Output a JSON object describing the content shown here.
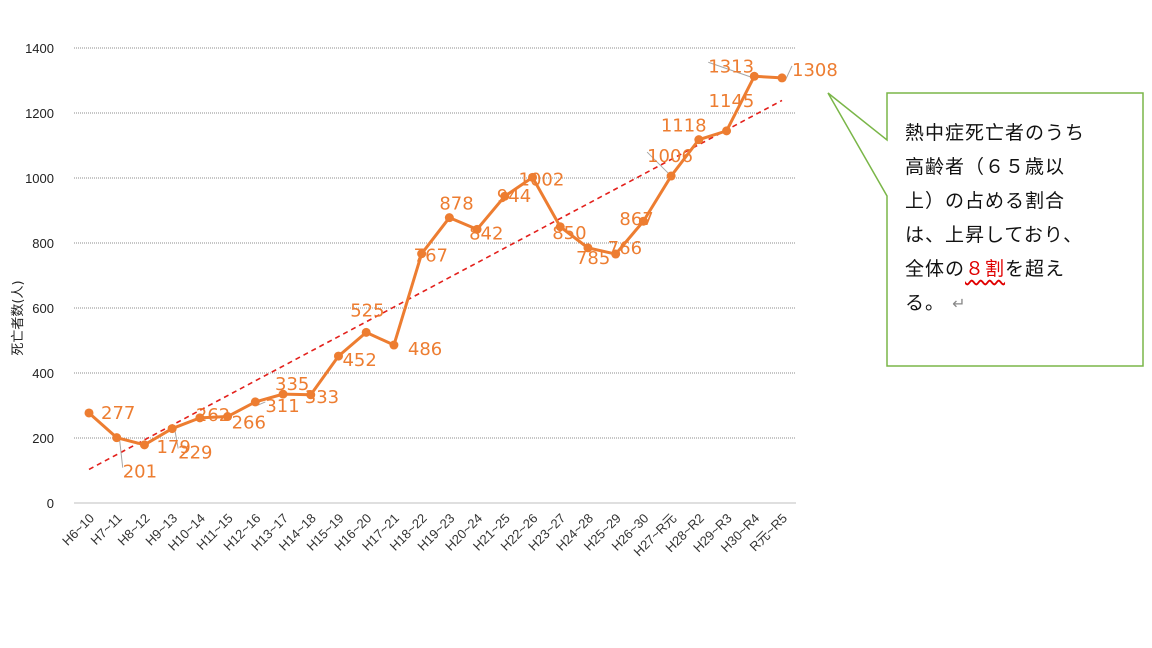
{
  "chart_data": {
    "type": "line",
    "categories": [
      "H6~10",
      "H7~11",
      "H8~12",
      "H9~13",
      "H10~14",
      "H11~15",
      "H12~16",
      "H13~17",
      "H14~18",
      "H15~19",
      "H16~20",
      "H17~21",
      "H18~22",
      "H19~23",
      "H20~24",
      "H21~25",
      "H22~26",
      "H23~27",
      "H24~28",
      "H25~29",
      "H26~30",
      "H27~R元",
      "H28~R2",
      "H29~R3",
      "H30~R4",
      "R元~R5"
    ],
    "series": [
      {
        "values": [
          277,
          201,
          179,
          229,
          262,
          266,
          311,
          335,
          333,
          452,
          525,
          486,
          767,
          878,
          842,
          944,
          1002,
          850,
          785,
          766,
          867,
          1006,
          1118,
          1145,
          1313,
          1308
        ],
        "color": "#ED7D31"
      }
    ],
    "trendline": {
      "style": "linear",
      "color": "#e3201b"
    },
    "ylabel": "死亡者数(人)",
    "ylim": [
      0,
      1400
    ],
    "yticks": [
      0,
      200,
      400,
      600,
      800,
      1000,
      1200,
      1400
    ],
    "grid": true
  },
  "callout": {
    "lines": [
      "熱中症死亡者のうち",
      "高齢者（６５歳以",
      "上）の占める割合",
      "は、上昇しており、"
    ],
    "line5_prefix": "全体の",
    "line5_highlight": "８割",
    "line5_suffix": "を超え",
    "line6": "る。",
    "para_mark": "↵",
    "border_color": "#7ab648",
    "highlight_color": "#e00000"
  }
}
